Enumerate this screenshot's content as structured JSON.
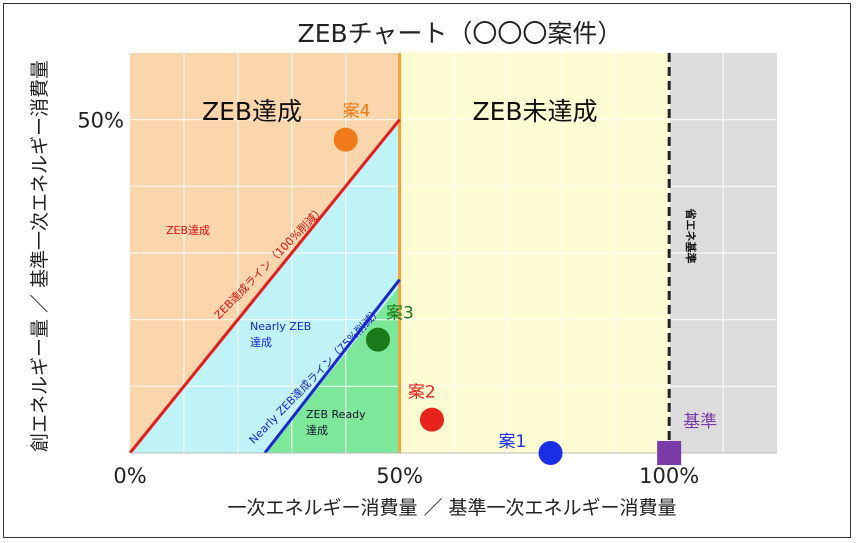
{
  "chart_data": {
    "type": "scatter",
    "title": "ZEBチャート（〇〇〇案件）",
    "xlabel": "一次エネルギー消費量 ／ 基準一次エネルギー消費量",
    "ylabel": "創エネルギー量 ／ 基準一次エネルギー消費量",
    "xlim": [
      0,
      120
    ],
    "ylim": [
      0,
      60
    ],
    "x_ticks": [
      {
        "value": 0,
        "label": "0%"
      },
      {
        "value": 50,
        "label": "50%"
      },
      {
        "value": 100,
        "label": "100%"
      }
    ],
    "y_ticks": [
      {
        "value": 50,
        "label": "50%"
      }
    ],
    "grid": true,
    "regions": {
      "achieved": "ZEB達成",
      "not_achieved": "ZEB未達成",
      "zeb_small": "ZEB達成",
      "nearly": "Nearly ZEB 達成",
      "ready": "ZEB Ready 達成",
      "energy_saving": "省エネ基準"
    },
    "lines": {
      "zeb_line": "ZEB達成ライン（100%削減）",
      "nearly_line": "Nearly ZEB達成ライン（75%削減）"
    },
    "points": [
      {
        "label": "案4",
        "x": 40,
        "y": 47,
        "color": "#f07a1a"
      },
      {
        "label": "案3",
        "x": 46,
        "y": 17,
        "color": "#1a7a1a"
      },
      {
        "label": "案2",
        "x": 56,
        "y": 5,
        "color": "#e8221c"
      },
      {
        "label": "案1",
        "x": 78,
        "y": 0,
        "color": "#1a2ee8"
      },
      {
        "label": "基準",
        "x": 100,
        "y": 0,
        "color": "#7a3aa8"
      }
    ]
  }
}
